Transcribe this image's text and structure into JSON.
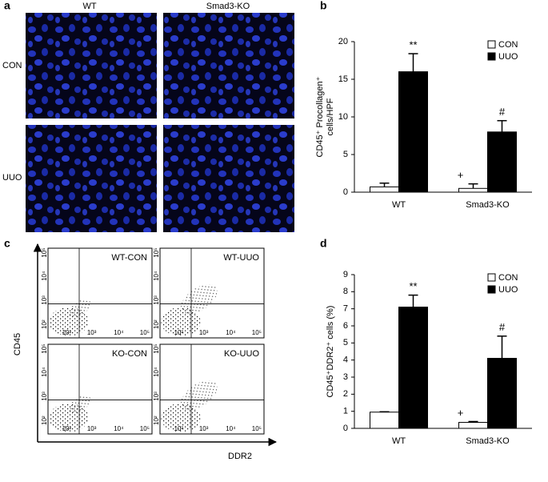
{
  "panel_labels": [
    "a",
    "b",
    "c",
    "d"
  ],
  "micrographs": {
    "columns": [
      "WT",
      "Smad3-KO"
    ],
    "rows": [
      "CON",
      "UUO"
    ]
  },
  "flow": {
    "x_label": "DDR2",
    "y_label": "CD45",
    "plots": [
      "WT-CON",
      "WT-UUO",
      "KO-CON",
      "KO-UUO"
    ],
    "ticks": [
      "10²",
      "10³",
      "10⁴",
      "10⁵"
    ]
  },
  "chart_data": [
    {
      "type": "bar",
      "ylabel": [
        "CD45⁺ Procollagen⁺",
        "cells/HPF"
      ],
      "categories": [
        "WT",
        "Smad3-KO"
      ],
      "series": [
        {
          "name": "CON",
          "color": "#ffffff",
          "values": [
            0.7,
            0.5
          ],
          "errors": [
            0.5,
            0.6
          ],
          "significance": [
            null,
            "+"
          ]
        },
        {
          "name": "UUO",
          "color": "#000000",
          "values": [
            16,
            8
          ],
          "errors": [
            2.4,
            1.5
          ],
          "significance": [
            "**",
            "#"
          ]
        }
      ],
      "ylim": [
        0,
        20
      ],
      "yticks": [
        0,
        5,
        10,
        15,
        20
      ],
      "legend": "upper right"
    },
    {
      "type": "bar",
      "ylabel": [
        "CD45⁺DDR2⁺ cells (%)"
      ],
      "categories": [
        "WT",
        "Smad3-KO"
      ],
      "series": [
        {
          "name": "CON",
          "color": "#ffffff",
          "values": [
            0.95,
            0.35
          ],
          "errors": [
            0.02,
            0.05
          ],
          "significance": [
            null,
            "+"
          ]
        },
        {
          "name": "UUO",
          "color": "#000000",
          "values": [
            7.1,
            4.1
          ],
          "errors": [
            0.7,
            1.3
          ],
          "significance": [
            "**",
            "#"
          ]
        }
      ],
      "ylim": [
        0,
        9
      ],
      "yticks": [
        0,
        1,
        2,
        3,
        4,
        5,
        6,
        7,
        8,
        9
      ],
      "legend": "upper right"
    }
  ]
}
